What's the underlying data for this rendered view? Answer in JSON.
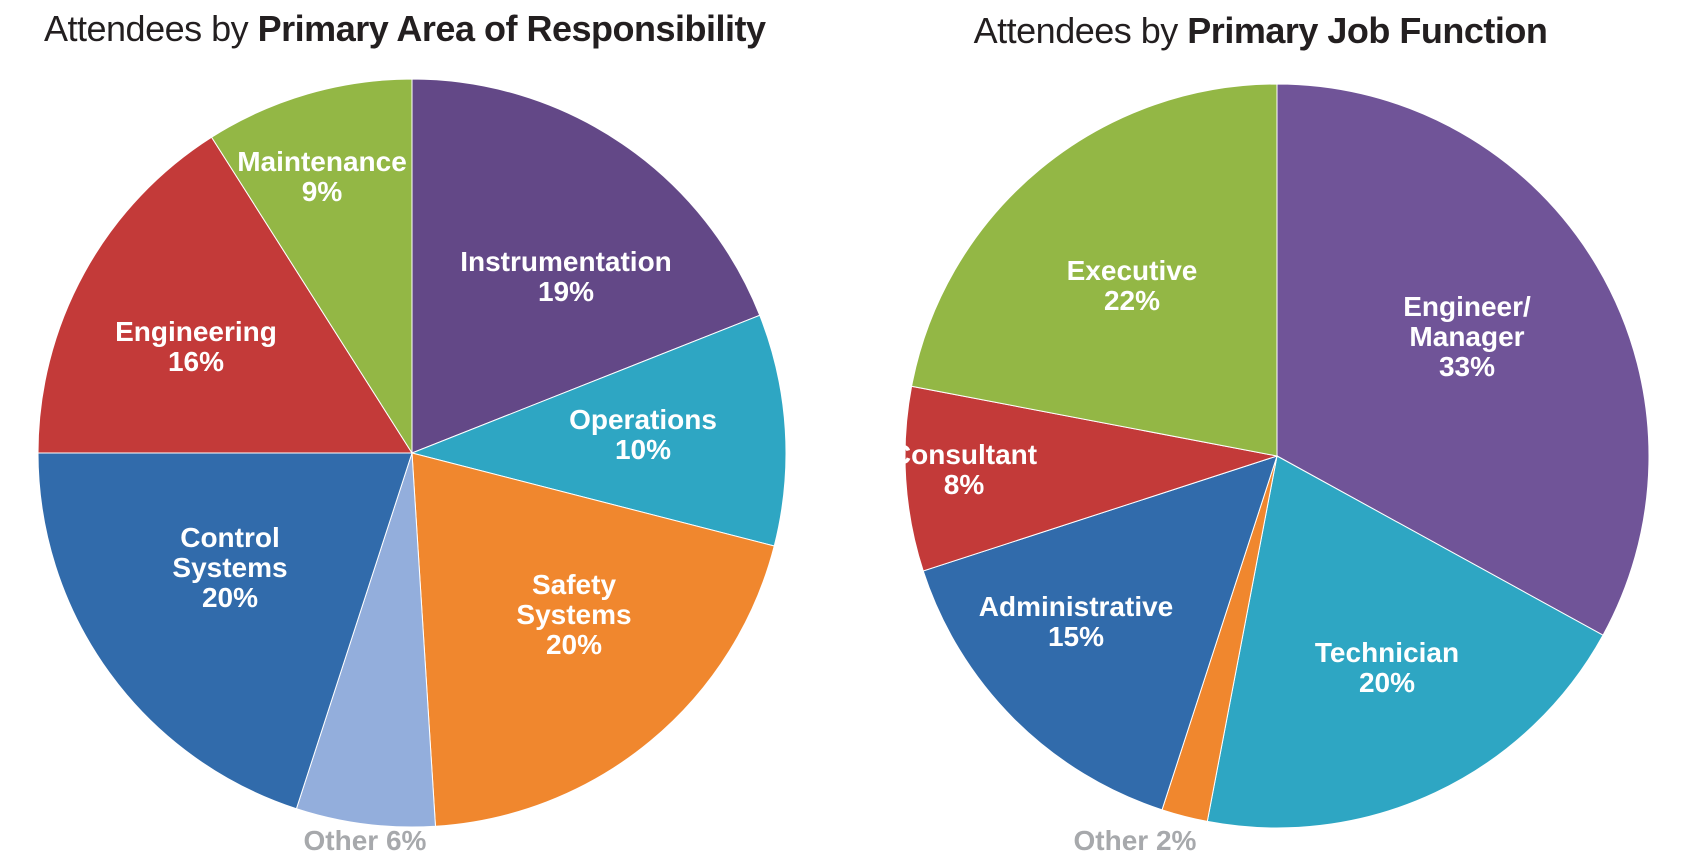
{
  "chart_data": [
    {
      "type": "pie",
      "title_plain": "Attendees by ",
      "title_bold": "Primary Area of Responsibility",
      "slices": [
        {
          "label": "Instrumentation",
          "value_label": "19%",
          "value": 19,
          "color": "#634887"
        },
        {
          "label": "Operations",
          "value_label": "10%",
          "value": 10,
          "color": "#2ea6c3"
        },
        {
          "label": "Safety Systems",
          "value_label": "20%",
          "value": 20,
          "color": "#f0872e"
        },
        {
          "label": "Other",
          "value_label": "Other 6%",
          "value": 6,
          "color": "#93aedc"
        },
        {
          "label": "Control Systems",
          "value_label": "20%",
          "value": 20,
          "color": "#316bab"
        },
        {
          "label": "Engineering",
          "value_label": "16%",
          "value": 16,
          "color": "#c33a39"
        },
        {
          "label": "Maintenance",
          "value_label": "9%",
          "value": 9,
          "color": "#93b745"
        }
      ]
    },
    {
      "type": "pie",
      "title_plain": "Attendees by ",
      "title_bold": "Primary Job Function",
      "slices": [
        {
          "label": "Engineer/ Manager",
          "value_label": "33%",
          "value": 33,
          "color": "#705498"
        },
        {
          "label": "Technician",
          "value_label": "20%",
          "value": 20,
          "color": "#2ea6c3"
        },
        {
          "label": "Other",
          "value_label": "Other 2%",
          "value": 2,
          "color": "#f0872e"
        },
        {
          "label": "Administrative",
          "value_label": "15%",
          "value": 15,
          "color": "#316bab"
        },
        {
          "label": "Consultant",
          "value_label": "8%",
          "value": 8,
          "color": "#c33a39"
        },
        {
          "label": "Executive",
          "value_label": "22%",
          "value": 22,
          "color": "#93b745"
        }
      ]
    }
  ],
  "colors": {
    "label_text": "#ffffff",
    "other_label_text": "#a7a9ac",
    "title_text": "#231f20"
  }
}
